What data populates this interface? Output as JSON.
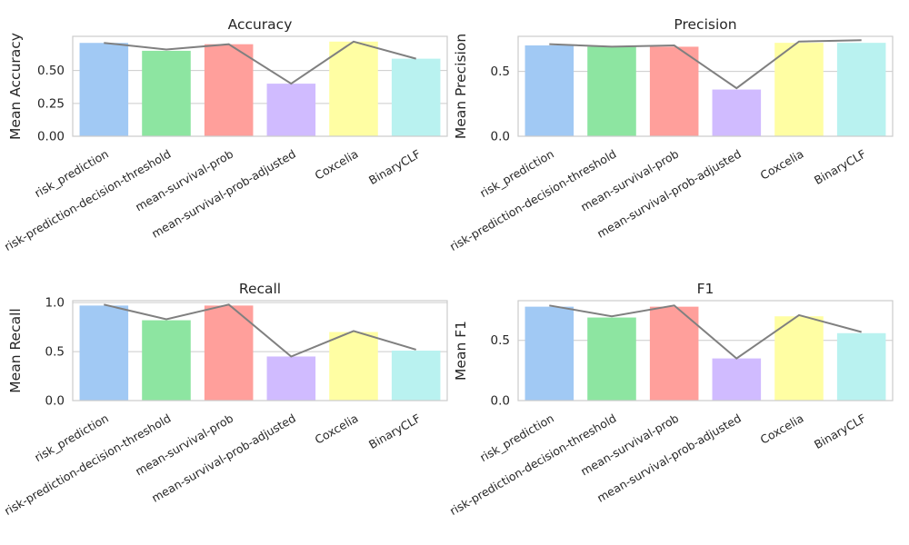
{
  "chart_data": [
    {
      "type": "bar",
      "title": "Accuracy",
      "xlabel": "",
      "ylabel": "Mean Accuracy",
      "categories": [
        "risk_prediction",
        "risk-prediction-decision-threshold",
        "mean-survival-prob",
        "mean-survival-prob-adjusted",
        "Coxcelia",
        "BinaryCLF"
      ],
      "values": [
        0.71,
        0.65,
        0.7,
        0.4,
        0.72,
        0.59
      ],
      "line_values": [
        0.71,
        0.66,
        0.7,
        0.4,
        0.72,
        0.59
      ],
      "yticks": [
        0.0,
        0.25,
        0.5
      ],
      "ytick_labels": [
        "0.00",
        "0.25",
        "0.50"
      ],
      "ylim": [
        0,
        0.76
      ],
      "grid": true
    },
    {
      "type": "bar",
      "title": "Precision",
      "xlabel": "",
      "ylabel": "Mean Precision",
      "categories": [
        "risk_prediction",
        "risk-prediction-decision-threshold",
        "mean-survival-prob",
        "mean-survival-prob-adjusted",
        "Coxcelia",
        "BinaryCLF"
      ],
      "values": [
        0.7,
        0.69,
        0.69,
        0.36,
        0.72,
        0.72
      ],
      "line_values": [
        0.71,
        0.69,
        0.7,
        0.37,
        0.73,
        0.74
      ],
      "yticks": [
        0.0,
        0.5
      ],
      "ytick_labels": [
        "0.0",
        "0.5"
      ],
      "ylim": [
        0,
        0.77
      ],
      "grid": true
    },
    {
      "type": "bar",
      "title": "Recall",
      "xlabel": "",
      "ylabel": "Mean Recall",
      "categories": [
        "risk_prediction",
        "risk-prediction-decision-threshold",
        "mean-survival-prob",
        "mean-survival-prob-adjusted",
        "Coxcelia",
        "BinaryCLF"
      ],
      "values": [
        0.97,
        0.82,
        0.97,
        0.45,
        0.7,
        0.51
      ],
      "line_values": [
        0.98,
        0.83,
        0.98,
        0.45,
        0.71,
        0.52
      ],
      "yticks": [
        0.0,
        0.5,
        1.0
      ],
      "ytick_labels": [
        "0.0",
        "0.5",
        "1.0"
      ],
      "ylim": [
        0,
        1.02
      ],
      "grid": true
    },
    {
      "type": "bar",
      "title": "F1",
      "xlabel": "",
      "ylabel": "Mean F1",
      "categories": [
        "risk_prediction",
        "risk-prediction-decision-threshold",
        "mean-survival-prob",
        "mean-survival-prob-adjusted",
        "Coxcelia",
        "BinaryCLF"
      ],
      "values": [
        0.78,
        0.69,
        0.78,
        0.35,
        0.7,
        0.56
      ],
      "line_values": [
        0.79,
        0.7,
        0.79,
        0.35,
        0.71,
        0.57
      ],
      "yticks": [
        0.0,
        0.5
      ],
      "ytick_labels": [
        "0.0",
        "0.5"
      ],
      "ylim": [
        0,
        0.83
      ],
      "grid": true
    }
  ],
  "colors": {
    "bars": [
      "#a1c9f4",
      "#8de5a1",
      "#ff9f9b",
      "#d0bbff",
      "#fffea3",
      "#b9f2f0"
    ],
    "line": "#808080",
    "grid": "#cccccc",
    "spine": "#cccccc",
    "text": "#262626"
  }
}
